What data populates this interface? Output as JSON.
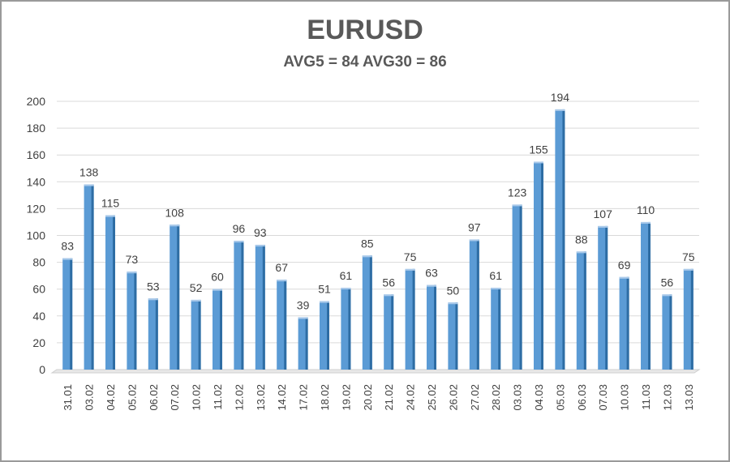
{
  "chart_data": {
    "type": "bar",
    "title": "EURUSD",
    "subtitle": "AVG5 = 84 AVG30 = 86",
    "xlabel": "",
    "ylabel": "",
    "ylim": [
      0,
      200
    ],
    "yticks": [
      0,
      20,
      40,
      60,
      80,
      100,
      120,
      140,
      160,
      180,
      200
    ],
    "grid": true,
    "categories": [
      "31.01",
      "03.02",
      "04.02",
      "05.02",
      "06.02",
      "07.02",
      "10.02",
      "11.02",
      "12.02",
      "13.02",
      "14.02",
      "17.02",
      "18.02",
      "19.02",
      "20.02",
      "21.02",
      "24.02",
      "25.02",
      "26.02",
      "27.02",
      "28.02",
      "03.03",
      "04.03",
      "05.03",
      "06.03",
      "07.03",
      "10.03",
      "11.03",
      "12.03",
      "13.03"
    ],
    "values": [
      83,
      138,
      115,
      73,
      53,
      108,
      52,
      60,
      96,
      93,
      67,
      39,
      51,
      61,
      85,
      56,
      75,
      63,
      50,
      97,
      61,
      123,
      155,
      194,
      88,
      107,
      69,
      110,
      56,
      75
    ],
    "colors": {
      "bar": "#5b9bd5",
      "bar_dark": "#2e6da4",
      "grid": "#d9d9d9",
      "text": "#404040"
    }
  }
}
